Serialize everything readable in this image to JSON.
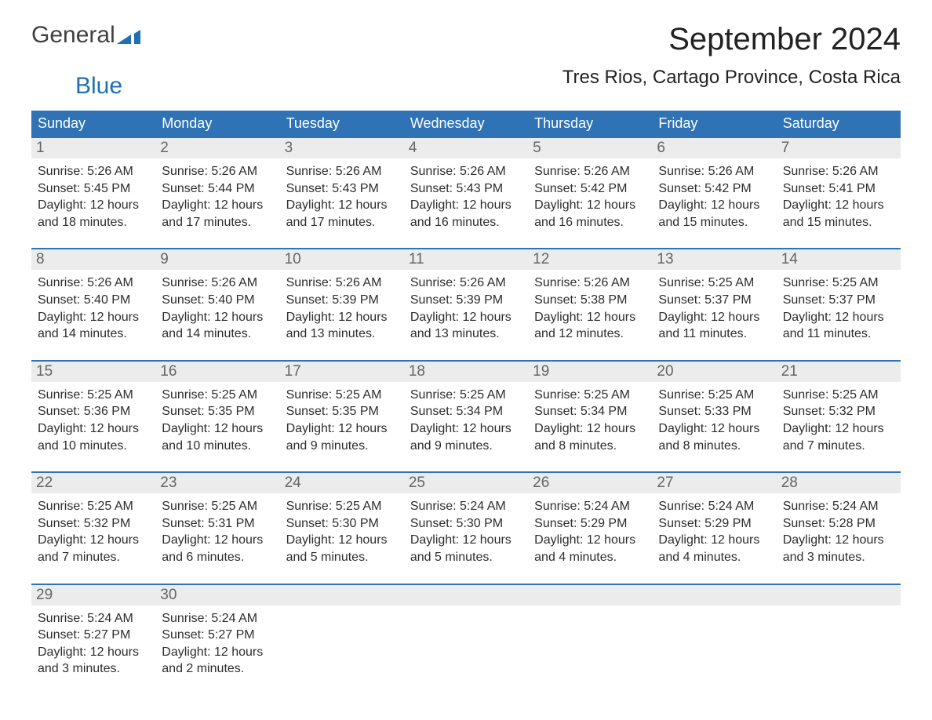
{
  "brand": {
    "word1": "General",
    "word2": "Blue",
    "accent_color": "#1f6fb2"
  },
  "title": "September 2024",
  "location": "Tres Rios, Cartago Province, Costa Rica",
  "styling": {
    "header_bg": "#2f73b6",
    "header_fg": "#ffffff",
    "daynum_bg": "#ececec",
    "daynum_fg": "#656565",
    "week_divider": "#2f73b6",
    "body_fg": "#2d2d2d",
    "page_bg": "#ffffff",
    "month_title_fontsize": 40,
    "location_fontsize": 24,
    "weekday_fontsize": 18,
    "daynum_fontsize": 19,
    "body_fontsize": 16
  },
  "weekdays": [
    "Sunday",
    "Monday",
    "Tuesday",
    "Wednesday",
    "Thursday",
    "Friday",
    "Saturday"
  ],
  "days": [
    {
      "n": 1,
      "sunrise": "5:26 AM",
      "sunset": "5:45 PM",
      "daylight": "12 hours and 18 minutes."
    },
    {
      "n": 2,
      "sunrise": "5:26 AM",
      "sunset": "5:44 PM",
      "daylight": "12 hours and 17 minutes."
    },
    {
      "n": 3,
      "sunrise": "5:26 AM",
      "sunset": "5:43 PM",
      "daylight": "12 hours and 17 minutes."
    },
    {
      "n": 4,
      "sunrise": "5:26 AM",
      "sunset": "5:43 PM",
      "daylight": "12 hours and 16 minutes."
    },
    {
      "n": 5,
      "sunrise": "5:26 AM",
      "sunset": "5:42 PM",
      "daylight": "12 hours and 16 minutes."
    },
    {
      "n": 6,
      "sunrise": "5:26 AM",
      "sunset": "5:42 PM",
      "daylight": "12 hours and 15 minutes."
    },
    {
      "n": 7,
      "sunrise": "5:26 AM",
      "sunset": "5:41 PM",
      "daylight": "12 hours and 15 minutes."
    },
    {
      "n": 8,
      "sunrise": "5:26 AM",
      "sunset": "5:40 PM",
      "daylight": "12 hours and 14 minutes."
    },
    {
      "n": 9,
      "sunrise": "5:26 AM",
      "sunset": "5:40 PM",
      "daylight": "12 hours and 14 minutes."
    },
    {
      "n": 10,
      "sunrise": "5:26 AM",
      "sunset": "5:39 PM",
      "daylight": "12 hours and 13 minutes."
    },
    {
      "n": 11,
      "sunrise": "5:26 AM",
      "sunset": "5:39 PM",
      "daylight": "12 hours and 13 minutes."
    },
    {
      "n": 12,
      "sunrise": "5:26 AM",
      "sunset": "5:38 PM",
      "daylight": "12 hours and 12 minutes."
    },
    {
      "n": 13,
      "sunrise": "5:25 AM",
      "sunset": "5:37 PM",
      "daylight": "12 hours and 11 minutes."
    },
    {
      "n": 14,
      "sunrise": "5:25 AM",
      "sunset": "5:37 PM",
      "daylight": "12 hours and 11 minutes."
    },
    {
      "n": 15,
      "sunrise": "5:25 AM",
      "sunset": "5:36 PM",
      "daylight": "12 hours and 10 minutes."
    },
    {
      "n": 16,
      "sunrise": "5:25 AM",
      "sunset": "5:35 PM",
      "daylight": "12 hours and 10 minutes."
    },
    {
      "n": 17,
      "sunrise": "5:25 AM",
      "sunset": "5:35 PM",
      "daylight": "12 hours and 9 minutes."
    },
    {
      "n": 18,
      "sunrise": "5:25 AM",
      "sunset": "5:34 PM",
      "daylight": "12 hours and 9 minutes."
    },
    {
      "n": 19,
      "sunrise": "5:25 AM",
      "sunset": "5:34 PM",
      "daylight": "12 hours and 8 minutes."
    },
    {
      "n": 20,
      "sunrise": "5:25 AM",
      "sunset": "5:33 PM",
      "daylight": "12 hours and 8 minutes."
    },
    {
      "n": 21,
      "sunrise": "5:25 AM",
      "sunset": "5:32 PM",
      "daylight": "12 hours and 7 minutes."
    },
    {
      "n": 22,
      "sunrise": "5:25 AM",
      "sunset": "5:32 PM",
      "daylight": "12 hours and 7 minutes."
    },
    {
      "n": 23,
      "sunrise": "5:25 AM",
      "sunset": "5:31 PM",
      "daylight": "12 hours and 6 minutes."
    },
    {
      "n": 24,
      "sunrise": "5:25 AM",
      "sunset": "5:30 PM",
      "daylight": "12 hours and 5 minutes."
    },
    {
      "n": 25,
      "sunrise": "5:24 AM",
      "sunset": "5:30 PM",
      "daylight": "12 hours and 5 minutes."
    },
    {
      "n": 26,
      "sunrise": "5:24 AM",
      "sunset": "5:29 PM",
      "daylight": "12 hours and 4 minutes."
    },
    {
      "n": 27,
      "sunrise": "5:24 AM",
      "sunset": "5:29 PM",
      "daylight": "12 hours and 4 minutes."
    },
    {
      "n": 28,
      "sunrise": "5:24 AM",
      "sunset": "5:28 PM",
      "daylight": "12 hours and 3 minutes."
    },
    {
      "n": 29,
      "sunrise": "5:24 AM",
      "sunset": "5:27 PM",
      "daylight": "12 hours and 3 minutes."
    },
    {
      "n": 30,
      "sunrise": "5:24 AM",
      "sunset": "5:27 PM",
      "daylight": "12 hours and 2 minutes."
    }
  ],
  "labels": {
    "sunrise": "Sunrise:",
    "sunset": "Sunset:",
    "daylight": "Daylight:"
  },
  "grid": {
    "start_weekday": 0,
    "total_cells": 35
  }
}
